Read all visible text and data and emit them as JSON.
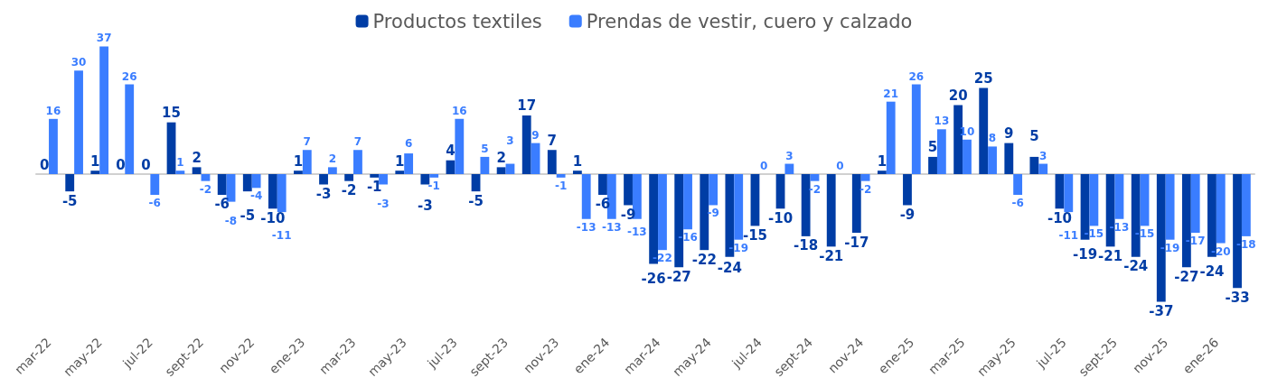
{
  "chart_data": {
    "type": "bar",
    "categories": [
      "mar-22",
      null,
      "may-22",
      null,
      "jul-22",
      null,
      "sept-22",
      null,
      "nov-22",
      null,
      "ene-23",
      null,
      "mar-23",
      null,
      "may-23",
      null,
      "jul-23",
      null,
      "sept-23",
      null,
      "nov-23",
      null,
      "ene-24",
      null,
      "mar-24",
      null,
      "may-24",
      null,
      "jul-24",
      null,
      "sept-24",
      null,
      "nov-24",
      null,
      "ene-25",
      null,
      "mar-25",
      null,
      "may-25",
      null,
      "jul-25",
      null,
      "sept-25",
      null,
      "nov-25",
      null,
      "ene-26",
      null
    ],
    "series": [
      {
        "name": "Productos textiles",
        "color": "#003da5",
        "values": [
          0,
          -5,
          1,
          0,
          0,
          15,
          2,
          -6,
          -5,
          -10,
          1,
          -3,
          -2,
          -1,
          1,
          -3,
          4,
          -5,
          2,
          17,
          7,
          1,
          -6,
          -9,
          -26,
          -27,
          -22,
          -24,
          -15,
          -10,
          -18,
          -21,
          -17,
          1,
          -9,
          5,
          20,
          25,
          9,
          5,
          -10,
          -19,
          -21,
          -24,
          -37,
          -27,
          -24,
          -33
        ]
      },
      {
        "name": "Prendas de vestir, cuero y calzado",
        "color": "#3a7dff",
        "values": [
          16,
          30,
          37,
          26,
          -6,
          1,
          -2,
          -8,
          -4,
          -11,
          7,
          2,
          7,
          -3,
          6,
          -1,
          16,
          5,
          3,
          9,
          -1,
          -13,
          -13,
          -13,
          -22,
          -16,
          -9,
          -19,
          0,
          3,
          -2,
          0,
          -2,
          21,
          26,
          13,
          10,
          8,
          -6,
          3,
          -11,
          -15,
          -13,
          -15,
          -19,
          -17,
          -20,
          -18
        ]
      }
    ],
    "data_labels": true,
    "legend": "top",
    "grid": false
  }
}
